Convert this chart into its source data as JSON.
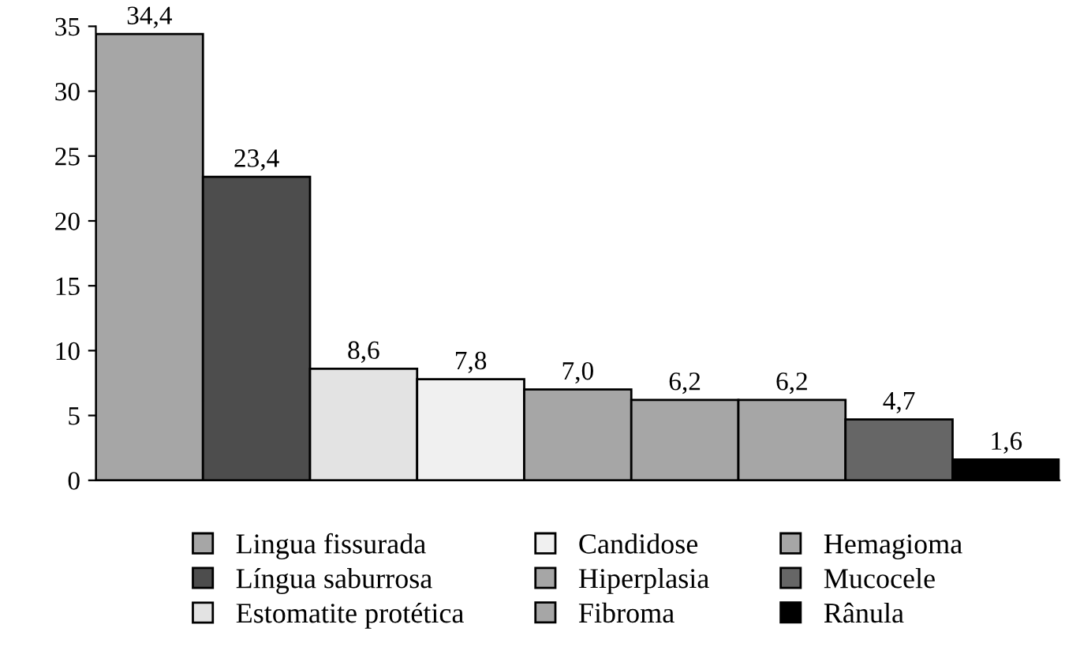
{
  "chart_data": {
    "type": "bar",
    "categories": [
      null,
      null,
      null,
      null,
      null,
      null,
      null,
      null,
      null
    ],
    "series": [
      {
        "name": "Lingua fissurada",
        "color": "#a6a6a6",
        "values": [
          34.4,
          null,
          null,
          null,
          null,
          null,
          null,
          null,
          null
        ]
      },
      {
        "name": "Língua saburrosa",
        "color": "#4d4d4d",
        "values": [
          null,
          23.4,
          null,
          null,
          null,
          null,
          null,
          null,
          null
        ]
      },
      {
        "name": "Estomatite protética",
        "color": "#e3e3e3",
        "values": [
          null,
          null,
          8.6,
          null,
          null,
          null,
          null,
          null,
          null
        ]
      },
      {
        "name": "Candidose",
        "color": "#f0f0f0",
        "values": [
          null,
          null,
          null,
          7.8,
          null,
          null,
          null,
          null,
          null
        ]
      },
      {
        "name": "Hiperplasia",
        "color": "#a6a6a6",
        "values": [
          null,
          null,
          null,
          null,
          7.0,
          null,
          null,
          null,
          null
        ]
      },
      {
        "name": "Fibroma",
        "color": "#a6a6a6",
        "values": [
          null,
          null,
          null,
          null,
          null,
          6.2,
          null,
          null,
          null
        ]
      },
      {
        "name": "Hemagioma",
        "color": "#a6a6a6",
        "values": [
          null,
          null,
          null,
          null,
          null,
          null,
          6.2,
          null,
          null
        ]
      },
      {
        "name": "Mucocele",
        "color": "#666666",
        "values": [
          null,
          null,
          null,
          null,
          null,
          null,
          null,
          4.7,
          null
        ]
      },
      {
        "name": "Rânula",
        "color": "#000000",
        "values": [
          null,
          null,
          null,
          null,
          null,
          null,
          null,
          null,
          1.6
        ]
      }
    ],
    "value_labels": [
      "34,4",
      "23,4",
      "8,6",
      "7,8",
      "7,0",
      "6,2",
      "6,2",
      "4,7",
      "1,6"
    ],
    "ylim": [
      0,
      35
    ],
    "yticks": [
      0,
      5,
      10,
      15,
      20,
      25,
      30,
      35
    ],
    "grid": false,
    "legend": "bottom"
  }
}
